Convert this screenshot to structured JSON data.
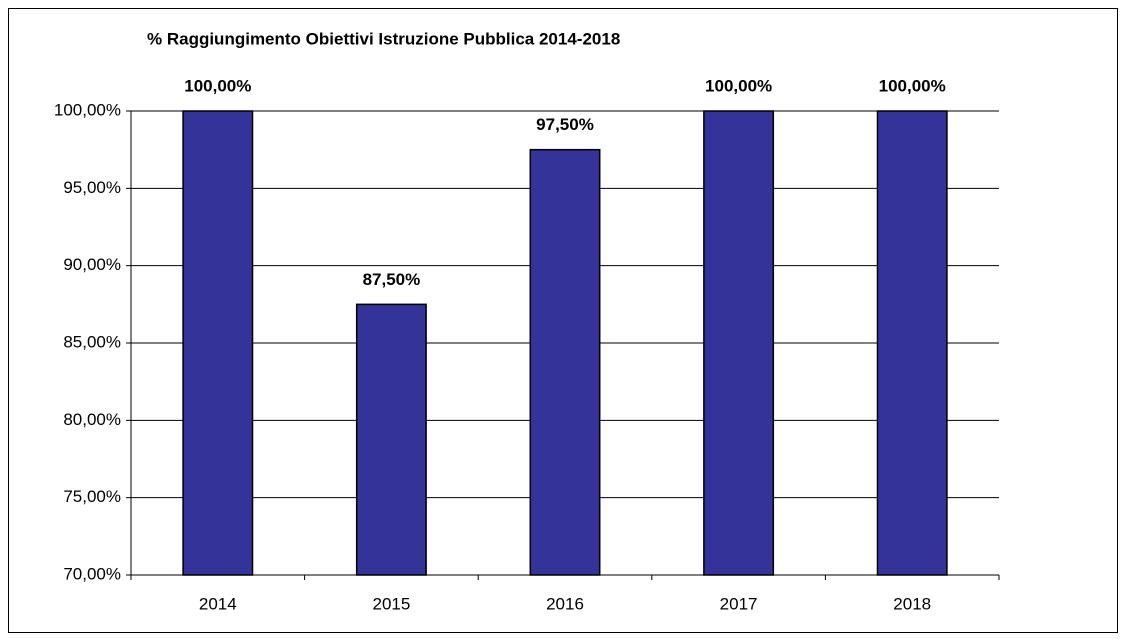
{
  "chart_data": {
    "type": "bar",
    "title": "% Raggiungimento Obiettivi Istruzione Pubblica 2014-2018",
    "categories": [
      "2014",
      "2015",
      "2016",
      "2017",
      "2018"
    ],
    "values": [
      100,
      87.5,
      97.5,
      100,
      100
    ],
    "value_labels": [
      "100,00%",
      "87,50%",
      "97,50%",
      "100,00%",
      "100,00%"
    ],
    "color": "#333399",
    "ylim": [
      70,
      100
    ],
    "yticks": [
      {
        "value": 70,
        "label": "70,00%"
      },
      {
        "value": 75,
        "label": "75,00%"
      },
      {
        "value": 80,
        "label": "80,00%"
      },
      {
        "value": 85,
        "label": "85,00%"
      },
      {
        "value": 90,
        "label": "90,00%"
      },
      {
        "value": 95,
        "label": "95,00%"
      },
      {
        "value": 100,
        "label": "100,00%"
      }
    ],
    "grid": true
  }
}
